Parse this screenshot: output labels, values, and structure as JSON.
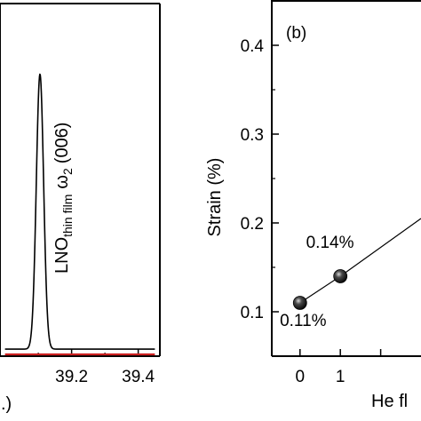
{
  "chart_data": [
    {
      "panel": "a",
      "type": "line",
      "title": "",
      "xlabel": ".)",
      "ylabel": "",
      "xlim": [
        38.985,
        39.465
      ],
      "ylim": [
        0,
        1
      ],
      "x_ticks": [
        "39.2",
        "39.4"
      ],
      "peak_annotation": {
        "main": "LNO",
        "sub": "thin film",
        "omega": "ω",
        "omega_sub": "2",
        "hkl": "(006)"
      },
      "series": [
        {
          "color": "#000000",
          "peak": {
            "center": 39.105,
            "width": 0.011,
            "height": 0.78,
            "baseline": 0.02
          },
          "x": [
            39.0,
            39.09,
            39.092,
            39.094,
            39.096,
            39.098,
            39.1,
            39.102,
            39.104,
            39.106,
            39.108,
            39.11,
            39.112,
            39.114,
            39.116,
            39.118,
            39.12,
            39.45
          ],
          "y": [
            0.02,
            0.05,
            0.12,
            0.22,
            0.35,
            0.5,
            0.62,
            0.72,
            0.77,
            0.78,
            0.75,
            0.66,
            0.53,
            0.38,
            0.24,
            0.13,
            0.06,
            0.02
          ]
        },
        {
          "color": "#cc1f1f",
          "x": [
            39.0,
            39.45
          ],
          "y": [
            0.005,
            0.005
          ]
        }
      ]
    },
    {
      "panel": "b",
      "type": "line",
      "title": "(b)",
      "xlabel": "He fl",
      "ylabel": "Strain  (%)",
      "xlim": [
        -0.7,
        3.0
      ],
      "ylim": [
        0.05,
        0.45
      ],
      "y_ticks": [
        "0.1",
        "0.2",
        "0.3",
        "0.4"
      ],
      "x_ticks": [
        "0",
        "1"
      ],
      "series": [
        {
          "color": "#000000",
          "x": [
            0,
            1,
            3.0
          ],
          "y": [
            0.11,
            0.14,
            0.205
          ],
          "markers": [
            {
              "x": 0,
              "y": 0.11
            },
            {
              "x": 1,
              "y": 0.14
            }
          ]
        }
      ],
      "annotations": [
        {
          "text": "0.14%",
          "x": 0.15,
          "y": 0.172
        },
        {
          "text": "0.11%",
          "x": -0.5,
          "y": 0.084
        }
      ]
    }
  ]
}
